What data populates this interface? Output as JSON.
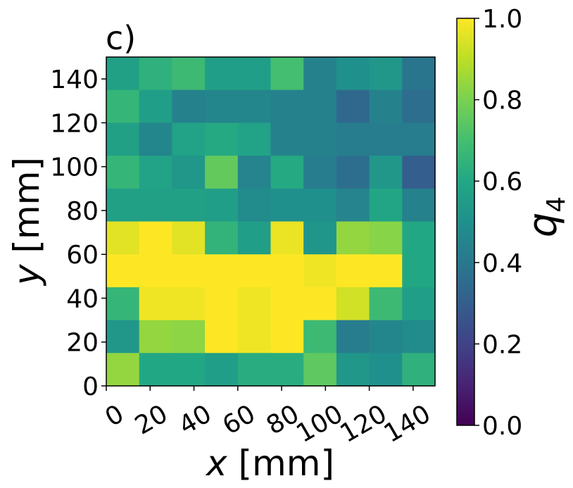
{
  "chart_data": {
    "type": "heatmap",
    "panel_label": "c)",
    "xlabel_var": "x",
    "xlabel_unit": " [mm]",
    "ylabel_var": "y",
    "ylabel_unit": " [mm]",
    "colorbar_label_var": "q",
    "colorbar_label_sub": "4",
    "xlim": [
      0,
      150
    ],
    "ylim": [
      0,
      150
    ],
    "x_ticks": [
      0,
      20,
      40,
      60,
      80,
      100,
      120,
      140
    ],
    "y_ticks": [
      0,
      20,
      40,
      60,
      80,
      100,
      120,
      140
    ],
    "colorbar_range": [
      0.0,
      1.0
    ],
    "colorbar_ticks": [
      "0.0",
      "0.2",
      "0.4",
      "0.6",
      "0.8",
      "1.0"
    ],
    "colormap": "viridis",
    "cell_size_mm": 15,
    "rows_top_to_bottom": [
      [
        0.57,
        0.64,
        0.68,
        0.56,
        0.56,
        0.7,
        0.44,
        0.5,
        0.53,
        0.39
      ],
      [
        0.66,
        0.56,
        0.44,
        0.46,
        0.46,
        0.44,
        0.44,
        0.34,
        0.44,
        0.36
      ],
      [
        0.57,
        0.46,
        0.58,
        0.61,
        0.58,
        0.44,
        0.44,
        0.42,
        0.42,
        0.42
      ],
      [
        0.66,
        0.58,
        0.53,
        0.76,
        0.45,
        0.61,
        0.42,
        0.36,
        0.53,
        0.3
      ],
      [
        0.57,
        0.57,
        0.57,
        0.56,
        0.48,
        0.5,
        0.5,
        0.45,
        0.59,
        0.44
      ],
      [
        0.96,
        1.0,
        0.96,
        0.65,
        0.56,
        0.97,
        0.52,
        0.84,
        0.82,
        0.6
      ],
      [
        1.0,
        1.0,
        1.0,
        1.0,
        1.0,
        1.0,
        0.98,
        1.0,
        1.0,
        0.6
      ],
      [
        0.66,
        0.98,
        0.98,
        1.0,
        0.98,
        1.0,
        1.0,
        0.93,
        0.68,
        0.56
      ],
      [
        0.53,
        0.84,
        0.83,
        1.0,
        0.98,
        1.0,
        0.68,
        0.42,
        0.46,
        0.48
      ],
      [
        0.84,
        0.6,
        0.6,
        0.56,
        0.62,
        0.62,
        0.75,
        0.53,
        0.5,
        0.64
      ]
    ]
  }
}
